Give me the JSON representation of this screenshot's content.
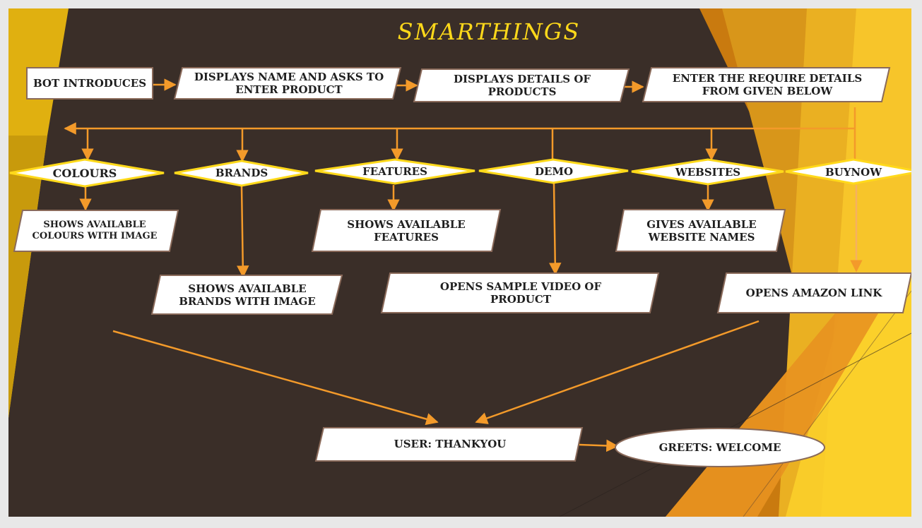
{
  "title": "SMARTHINGS",
  "nodes": {
    "bot_introduces": "BOT INTRODUCES",
    "displays_name": "DISPLAYS NAME AND ASKS TO ENTER PRODUCT",
    "displays_details": "DISPLAYS DETAILS OF PRODUCTS",
    "enter_details": "ENTER THE REQUIRE DETAILS FROM GIVEN BELOW",
    "colours": "COLOURS",
    "brands": "BRANDS",
    "features": "FEATURES",
    "demo": "DEMO",
    "websites": "WEBSITES",
    "buynow": "BUYNOW",
    "shows_colours": "SHOWS AVAILABLE COLOURS WITH IMAGE",
    "shows_brands": "SHOWS AVAILABLE BRANDS WITH IMAGE",
    "shows_features": "SHOWS AVAILABLE FEATURES",
    "opens_video": "OPENS SAMPLE VIDEO OF PRODUCT",
    "gives_websites": "GIVES AVAILABLE WEBSITE NAMES",
    "opens_amazon": "OPENS AMAZON LINK",
    "user_thankyou": "USER: THANKYOU",
    "greets_welcome": "GREETS: WELCOME"
  },
  "colors": {
    "background": "#3a2e28",
    "accent_yellow": "#ffd91a",
    "arrow_orange": "#f39a2a",
    "node_fill": "#ffffff",
    "node_border": "#8a6a5a",
    "gold_left": "#e0b010"
  }
}
